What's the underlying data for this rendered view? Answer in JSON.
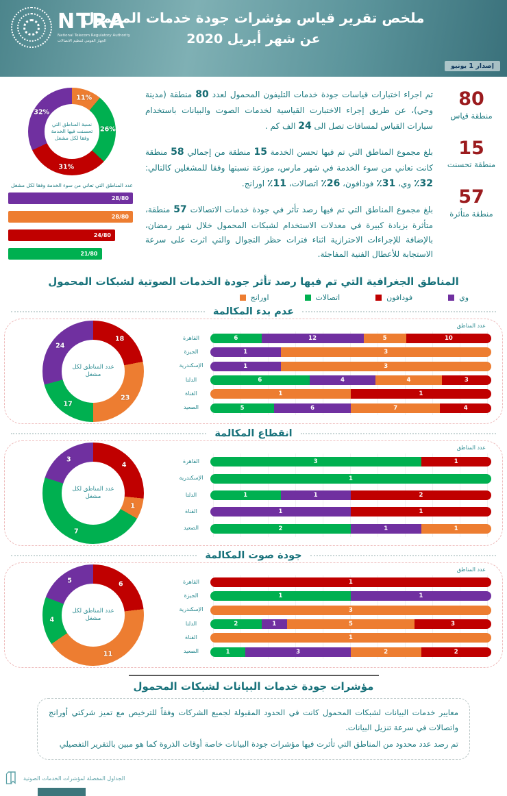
{
  "header": {
    "logo_text": "NTRA",
    "logo_subtext1": "National Telecom Regulatory Authority",
    "logo_subtext2": "الجهاز القومي لتنظيم الاتصالات",
    "title_line1": "ملخص تقرير قياس مؤشرات جودة خدمات المحمول",
    "title_line2": "عن شهر  أبريل 2020",
    "issue": "إصدار 1 يونيو"
  },
  "colors": {
    "teal": "#1d7a80",
    "stat_number": "#9b1b1e",
    "we_purple": "#7030A0",
    "orange": "#ED7D31",
    "vodafone_red": "#C00000",
    "etisalat_green": "#00B050"
  },
  "operators": [
    {
      "name": "وي",
      "color": "#7030A0"
    },
    {
      "name": "فودافون",
      "color": "#C00000"
    },
    {
      "name": "اتصالات",
      "color": "#00B050"
    },
    {
      "name": "اورانج",
      "color": "#ED7D31"
    }
  ],
  "summary": {
    "items": [
      {
        "number": "80",
        "caption": "منطقة قياس",
        "text": "تم اجراء اختبارات قياسات جودة خدمات التليفون المحمول لعدد 80 منطقة (مدينة وحي)، عن طريق إجراء الاختبارت القياسية لخدمات الصوت والبيانات باستخدام سيارات القياس لمسافات تصل الى 24 الف كم ."
      },
      {
        "number": "15",
        "caption": "منطقة تحسنت",
        "text": "بلغ مجموع المناطق التي تم فيها تحسن الخدمة 15 منطقة من إجمالي 58 منطقة كانت تعاني من سوء الخدمة في شهر مارس، موزعة نسبتها وفقا للمشغلين كالتالي: 32٪ وي، 31٪ فودافون، 26٪ اتصالات، 11٪ اورانج."
      },
      {
        "number": "57",
        "caption": "منطقة متأثرة",
        "text": "بلغ مجموع المناطق التي تم فيها رصد تأثر في جودة خدمات الاتصالات 57 منطقة، متأثرة بزيادة كبيرة في معدلات الاستخدام لشبكات المحمول خلال شهر رمضان، بالإضافة للإجراءات الاحترازية اثناء فترات حظر التجوال والتي اثرت على سرعة الاستجابة للأعطال الفنية المفاجئة."
      }
    ]
  },
  "voice_section": {
    "title": "المناطق الجغرافية التي تم فيها رصد تأثر جودة الخدمات الصوتية لشبكات المحمول",
    "axis_note": "عدد المناطق"
  },
  "chart_data": [
    {
      "id": "improved-areas-share",
      "type": "pie",
      "title": "نسبة المناطق التي تحسنت فيها الخدمة وفقا لكل مشغل",
      "unit": "%",
      "segments": [
        {
          "name": "اورانج",
          "value": 11,
          "label": "11%",
          "color": "#ED7D31"
        },
        {
          "name": "اتصالات",
          "value": 26,
          "label": "26%",
          "color": "#00B050"
        },
        {
          "name": "فودافون",
          "value": 31,
          "label": "31%",
          "color": "#C00000"
        },
        {
          "name": "وي",
          "value": 32,
          "label": "32%",
          "color": "#7030A0"
        }
      ]
    },
    {
      "id": "bad-service-areas",
      "type": "bar",
      "title": "عدد المناطق التي تعاني من سوء الخدمة وفقا لكل مشغل",
      "max": 80,
      "bars": [
        {
          "name": "وي",
          "value": 28,
          "label": "28/80",
          "color": "#7030A0"
        },
        {
          "name": "اورانج",
          "value": 28,
          "label": "28/80",
          "color": "#ED7D31"
        },
        {
          "name": "فودافون",
          "value": 24,
          "label": "24/80",
          "color": "#C00000"
        },
        {
          "name": "اتصالات",
          "value": 21,
          "label": "21/80",
          "color": "#00B050"
        }
      ]
    },
    {
      "id": "call-setup-failure",
      "type": "donut+stacked-bar",
      "title": "عدم بدء المكالمة",
      "donut": {
        "center_label": "عدد المناطق لكل مشغل",
        "segments": [
          {
            "name": "فودافون",
            "value": 18
          },
          {
            "name": "اورانج",
            "value": 23
          },
          {
            "name": "اتصالات",
            "value": 17
          },
          {
            "name": "وي",
            "value": 24
          }
        ]
      },
      "rows": [
        {
          "region": "القاهرة",
          "segments": [
            {
              "name": "اتصالات",
              "value": 6
            },
            {
              "name": "وي",
              "value": 12
            },
            {
              "name": "اورانج",
              "value": 5
            },
            {
              "name": "فودافون",
              "value": 10
            }
          ]
        },
        {
          "region": "الجيزة",
          "segments": [
            {
              "name": "وي",
              "value": 1
            },
            {
              "name": "اورانج",
              "value": 3
            }
          ]
        },
        {
          "region": "الإسكندرية",
          "segments": [
            {
              "name": "وي",
              "value": 1
            },
            {
              "name": "اورانج",
              "value": 3
            }
          ]
        },
        {
          "region": "الدلتا",
          "segments": [
            {
              "name": "اتصالات",
              "value": 6
            },
            {
              "name": "وي",
              "value": 4
            },
            {
              "name": "اورانج",
              "value": 4
            },
            {
              "name": "فودافون",
              "value": 3
            }
          ]
        },
        {
          "region": "القناة",
          "segments": [
            {
              "name": "اورانج",
              "value": 1
            },
            {
              "name": "فودافون",
              "value": 1
            }
          ]
        },
        {
          "region": "الصعيد",
          "segments": [
            {
              "name": "اتصالات",
              "value": 5
            },
            {
              "name": "وي",
              "value": 6
            },
            {
              "name": "اورانج",
              "value": 7
            },
            {
              "name": "فودافون",
              "value": 4
            }
          ]
        }
      ]
    },
    {
      "id": "call-drop",
      "type": "donut+stacked-bar",
      "title": "انقطاع المكالمة",
      "donut": {
        "center_label": "عدد المناطق لكل مشغل",
        "segments": [
          {
            "name": "فودافون",
            "value": 4
          },
          {
            "name": "اورانج",
            "value": 1
          },
          {
            "name": "اتصالات",
            "value": 7
          },
          {
            "name": "وي",
            "value": 3
          }
        ]
      },
      "rows": [
        {
          "region": "القاهرة",
          "segments": [
            {
              "name": "اتصالات",
              "value": 3
            },
            {
              "name": "فودافون",
              "value": 1
            }
          ]
        },
        {
          "region": "الإسكندرية",
          "segments": [
            {
              "name": "اتصالات",
              "value": 1
            }
          ]
        },
        {
          "region": "الدلتا",
          "segments": [
            {
              "name": "اتصالات",
              "value": 1
            },
            {
              "name": "وي",
              "value": 1
            },
            {
              "name": "فودافون",
              "value": 2
            }
          ]
        },
        {
          "region": "القناة",
          "segments": [
            {
              "name": "وي",
              "value": 1
            },
            {
              "name": "فودافون",
              "value": 1
            }
          ]
        },
        {
          "region": "الصعيد",
          "segments": [
            {
              "name": "اتصالات",
              "value": 2
            },
            {
              "name": "وي",
              "value": 1
            },
            {
              "name": "اورانج",
              "value": 1
            }
          ]
        }
      ]
    },
    {
      "id": "voice-quality",
      "type": "donut+stacked-bar",
      "title": "جودة صوت المكالمة",
      "donut": {
        "center_label": "عدد المناطق لكل مشغل",
        "segments": [
          {
            "name": "فودافون",
            "value": 6
          },
          {
            "name": "اورانج",
            "value": 11
          },
          {
            "name": "اتصالات",
            "value": 4
          },
          {
            "name": "وي",
            "value": 5
          }
        ]
      },
      "rows": [
        {
          "region": "القاهرة",
          "segments": [
            {
              "name": "فودافون",
              "value": 1
            }
          ]
        },
        {
          "region": "الجيزة",
          "segments": [
            {
              "name": "اتصالات",
              "value": 1
            },
            {
              "name": "وي",
              "value": 1
            }
          ]
        },
        {
          "region": "الإسكندرية",
          "segments": [
            {
              "name": "اورانج",
              "value": 3
            }
          ]
        },
        {
          "region": "الدلتا",
          "segments": [
            {
              "name": "اتصالات",
              "value": 2
            },
            {
              "name": "وي",
              "value": 1
            },
            {
              "name": "اورانج",
              "value": 5
            },
            {
              "name": "فودافون",
              "value": 3
            }
          ]
        },
        {
          "region": "القناة",
          "segments": [
            {
              "name": "اورانج",
              "value": 1
            }
          ]
        },
        {
          "region": "الصعيد",
          "segments": [
            {
              "name": "اتصالات",
              "value": 1
            },
            {
              "name": "وي",
              "value": 3
            },
            {
              "name": "اورانج",
              "value": 2
            },
            {
              "name": "فودافون",
              "value": 2
            }
          ]
        }
      ]
    }
  ],
  "data_section": {
    "title": "مؤشرات جودة خدمات البيانات  لشبكات المحمول",
    "paragraphs": [
      "معايير خدمات البيانات لشبكات المحمول كانت في الحدود المقبولة لجميع الشركات وفقاً للترخيص مع تميز شركتي أورانج واتصالات في سرعة تنزيل البيانات.",
      "تم رصد عدد محدود من المناطق التي تأثرت فيها مؤشرات جودة البيانات خاصة أوقات الذروة كما هو مبين بالتقرير التفصيلي"
    ]
  },
  "footer": {
    "note": "الجداول المفصلة لمؤشرات الخدمات الصوتية"
  }
}
